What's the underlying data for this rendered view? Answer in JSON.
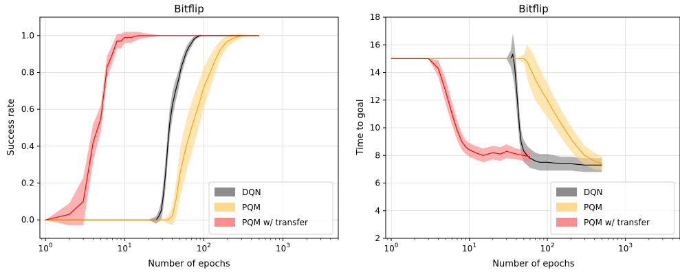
{
  "chart_data": [
    {
      "type": "line",
      "title": "Bitflip",
      "xlabel": "Number of epochs",
      "ylabel": "Success rate",
      "xscale": "log",
      "xlim": [
        0.85,
        5000
      ],
      "ylim": [
        -0.1,
        1.1
      ],
      "x_ticks": [
        {
          "value": 1,
          "base": "10",
          "exp": "0"
        },
        {
          "value": 10,
          "base": "10",
          "exp": "1"
        },
        {
          "value": 100,
          "base": "10",
          "exp": "2"
        },
        {
          "value": 1000,
          "base": "10",
          "exp": "3"
        }
      ],
      "y_ticks": [
        {
          "value": 0.0,
          "label": "0.0"
        },
        {
          "value": 0.2,
          "label": "0.2"
        },
        {
          "value": 0.4,
          "label": "0.4"
        },
        {
          "value": 0.6,
          "label": "0.6"
        },
        {
          "value": 0.8,
          "label": "0.8"
        },
        {
          "value": 1.0,
          "label": "1.0"
        }
      ],
      "grid": true,
      "legend_position": "bottom-right",
      "series": [
        {
          "name": "DQN",
          "color": "#000000",
          "band_color": "#808080",
          "x": [
            1,
            5,
            10,
            20,
            25,
            27,
            29,
            31,
            33,
            35,
            37,
            40,
            44,
            48,
            52,
            56,
            60,
            65,
            70,
            75,
            80,
            90,
            100,
            130,
            200,
            300,
            500
          ],
          "y": [
            0,
            0,
            0,
            0,
            0,
            0.02,
            0.05,
            0.14,
            0.26,
            0.4,
            0.52,
            0.62,
            0.7,
            0.76,
            0.83,
            0.87,
            0.91,
            0.94,
            0.96,
            0.98,
            0.99,
            1.0,
            1.0,
            1.0,
            1.0,
            1.0,
            1.0
          ],
          "band": [
            0,
            0,
            0,
            0,
            0.02,
            0.03,
            0.05,
            0.07,
            0.08,
            0.08,
            0.08,
            0.07,
            0.06,
            0.05,
            0.04,
            0.035,
            0.03,
            0.025,
            0.02,
            0.015,
            0.01,
            0.005,
            0,
            0,
            0,
            0,
            0
          ]
        },
        {
          "name": "PQM",
          "color": "#ffa500",
          "band_color": "#ffd580",
          "x": [
            1,
            5,
            10,
            20,
            30,
            35,
            40,
            45,
            50,
            55,
            60,
            70,
            80,
            90,
            100,
            120,
            140,
            160,
            180,
            200,
            250,
            300,
            400,
            500
          ],
          "y": [
            0,
            0,
            0,
            0,
            0,
            0.0,
            0.02,
            0.12,
            0.25,
            0.33,
            0.4,
            0.5,
            0.58,
            0.65,
            0.72,
            0.8,
            0.87,
            0.92,
            0.95,
            0.97,
            0.99,
            1.0,
            1.0,
            1.0
          ],
          "band": [
            0,
            0,
            0,
            0,
            0,
            0.02,
            0.05,
            0.1,
            0.13,
            0.14,
            0.14,
            0.14,
            0.13,
            0.12,
            0.11,
            0.09,
            0.07,
            0.05,
            0.04,
            0.03,
            0.02,
            0.01,
            0,
            0
          ]
        },
        {
          "name": "PQM w/ transfer",
          "color": "#ff0000",
          "band_color": "#ff7f7f",
          "x": [
            1,
            2,
            3,
            4,
            5,
            6,
            7,
            8,
            9,
            10,
            12,
            15,
            20,
            30,
            50,
            100,
            200,
            500
          ],
          "y": [
            0,
            0.03,
            0.1,
            0.42,
            0.55,
            0.83,
            0.9,
            0.97,
            0.97,
            0.99,
            0.99,
            1.0,
            1.0,
            1.0,
            1.0,
            1.0,
            1.0,
            1.0
          ],
          "band": [
            0,
            0.06,
            0.13,
            0.1,
            0.07,
            0.06,
            0.05,
            0.04,
            0.04,
            0.03,
            0.03,
            0.02,
            0.01,
            0,
            0,
            0,
            0,
            0
          ]
        }
      ]
    },
    {
      "type": "line",
      "title": "Bitflip",
      "xlabel": "Number of epochs",
      "ylabel": "Time to goal",
      "xscale": "log",
      "xlim": [
        0.85,
        5000
      ],
      "ylim": [
        2,
        18
      ],
      "x_ticks": [
        {
          "value": 1,
          "base": "10",
          "exp": "0"
        },
        {
          "value": 10,
          "base": "10",
          "exp": "1"
        },
        {
          "value": 100,
          "base": "10",
          "exp": "2"
        },
        {
          "value": 1000,
          "base": "10",
          "exp": "3"
        }
      ],
      "y_ticks": [
        {
          "value": 2,
          "label": "2"
        },
        {
          "value": 4,
          "label": "4"
        },
        {
          "value": 6,
          "label": "6"
        },
        {
          "value": 8,
          "label": "8"
        },
        {
          "value": 10,
          "label": "10"
        },
        {
          "value": 12,
          "label": "12"
        },
        {
          "value": 14,
          "label": "14"
        },
        {
          "value": 16,
          "label": "16"
        },
        {
          "value": 18,
          "label": "18"
        }
      ],
      "grid": true,
      "legend_position": "bottom-right",
      "series": [
        {
          "name": "DQN",
          "color": "#000000",
          "band_color": "#808080",
          "x": [
            1,
            10,
            30,
            34,
            36,
            38,
            40,
            42,
            44,
            46,
            48,
            50,
            55,
            60,
            70,
            80,
            100,
            150,
            200,
            300,
            500
          ],
          "y": [
            15,
            15,
            15,
            15,
            15.3,
            14.5,
            13,
            11.5,
            10,
            9,
            8.6,
            8.3,
            8.0,
            7.8,
            7.6,
            7.5,
            7.5,
            7.4,
            7.4,
            7.3,
            7.3
          ],
          "band": [
            0,
            0,
            0,
            0.6,
            1.5,
            1.5,
            1.5,
            1.3,
            1.1,
            0.9,
            0.8,
            0.8,
            0.7,
            0.7,
            0.6,
            0.6,
            0.6,
            0.5,
            0.5,
            0.5,
            0.5
          ]
        },
        {
          "name": "PQM",
          "color": "#ffa500",
          "band_color": "#ffd580",
          "x": [
            1,
            10,
            40,
            50,
            55,
            60,
            65,
            70,
            80,
            90,
            100,
            120,
            150,
            200,
            250,
            300,
            400,
            500
          ],
          "y": [
            15,
            15,
            15,
            15,
            14.8,
            14.3,
            13.9,
            13.5,
            12.9,
            12.4,
            12.0,
            11.2,
            10.3,
            9.2,
            8.5,
            8.0,
            7.6,
            7.4
          ],
          "band": [
            0,
            0,
            0,
            0.3,
            1.2,
            1.4,
            1.5,
            1.5,
            1.4,
            1.3,
            1.2,
            1.1,
            1.0,
            0.9,
            0.8,
            0.7,
            0.6,
            0.5
          ]
        },
        {
          "name": "PQM w/ transfer",
          "color": "#ff0000",
          "band_color": "#ff7f7f",
          "x": [
            1,
            2,
            3,
            4,
            5,
            6,
            7,
            8,
            9,
            10,
            12,
            15,
            20,
            25,
            30,
            40,
            50,
            60
          ],
          "y": [
            15,
            15,
            15,
            14.3,
            12.6,
            11.0,
            9.8,
            9.0,
            8.6,
            8.4,
            8.2,
            8.0,
            8.2,
            8.1,
            8.3,
            8.1,
            8.0,
            7.9
          ],
          "band": [
            0,
            0,
            0,
            0.6,
            0.9,
            0.8,
            0.7,
            0.6,
            0.5,
            0.5,
            0.5,
            0.5,
            0.5,
            0.5,
            0.5,
            0.4,
            0.4,
            0.4
          ]
        }
      ]
    }
  ]
}
